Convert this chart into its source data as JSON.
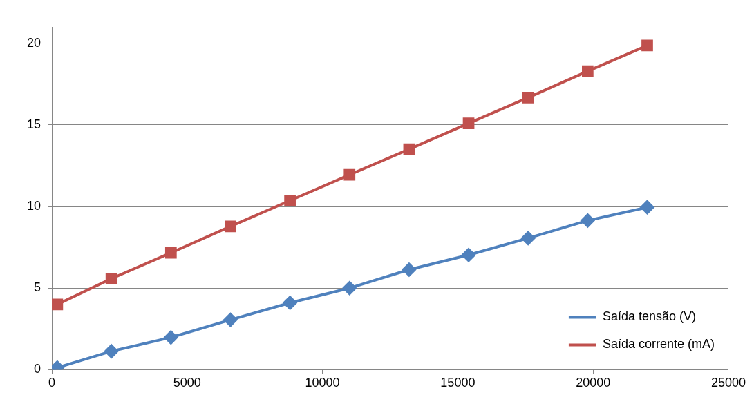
{
  "chart_data": {
    "type": "line",
    "x": [
      200,
      2200,
      4400,
      6600,
      8800,
      11000,
      13200,
      15400,
      17600,
      19800,
      22000
    ],
    "series": [
      {
        "name": "Saída tensão (V)",
        "color": "#4f81bd",
        "marker": "diamond",
        "values": [
          0.13,
          1.13,
          1.98,
          3.06,
          4.1,
          5.0,
          6.13,
          7.03,
          8.06,
          9.14,
          9.95
        ]
      },
      {
        "name": "Saída corrente (mA)",
        "color": "#c0504d",
        "marker": "square",
        "values": [
          4.0,
          5.58,
          7.16,
          8.78,
          10.36,
          11.94,
          13.51,
          15.09,
          16.67,
          18.29,
          19.86
        ]
      }
    ],
    "xlim": [
      0,
      25000
    ],
    "xticks": [
      0,
      5000,
      10000,
      15000,
      20000,
      25000
    ],
    "ylim": [
      0,
      21
    ],
    "yticks": [
      0,
      5,
      10,
      15,
      20
    ],
    "grid": "y",
    "legend": "bottom right",
    "line_style": "solid"
  }
}
